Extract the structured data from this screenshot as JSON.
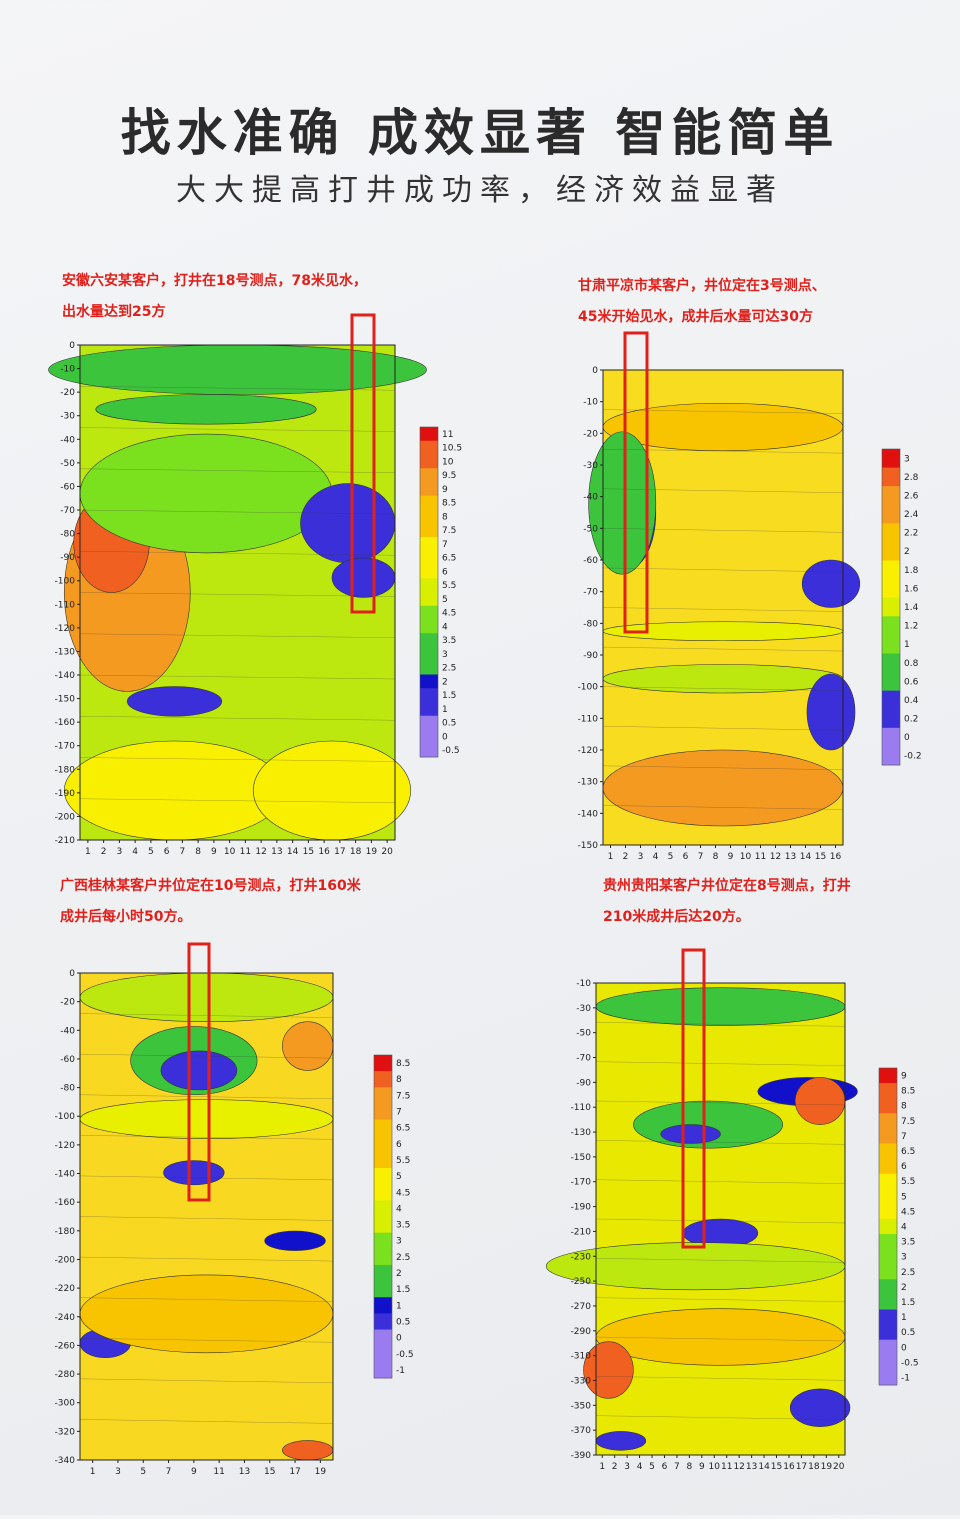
{
  "header": {
    "title": "找水准确  成效显著  智能简单",
    "subtitle": "大大提高打井成功率，经济效益显著"
  },
  "panels": [
    {
      "caption": [
        "安徽六安某客户，打井在18号测点，78米见水，",
        "出水量达到25方"
      ],
      "yticks": [
        0,
        -10,
        -20,
        -30,
        -40,
        -50,
        -60,
        -70,
        -80,
        -90,
        -100,
        -110,
        -120,
        -130,
        -140,
        -150,
        -160,
        -170,
        -180,
        -190,
        -200,
        -210
      ],
      "xticks": [
        1,
        2,
        3,
        4,
        5,
        6,
        7,
        8,
        9,
        10,
        11,
        12,
        13,
        14,
        15,
        16,
        17,
        18,
        19,
        20
      ],
      "colorbar": [
        11,
        10.5,
        10,
        9.5,
        9,
        8.5,
        8,
        7.5,
        7,
        6.5,
        6,
        5.5,
        5,
        4.5,
        4,
        3.5,
        3,
        2.5,
        2,
        1.5,
        1,
        0.5,
        0,
        -0.5
      ]
    },
    {
      "caption": [
        "甘肃平凉市某客户，井位定在3号测点、",
        "45米开始见水，成井后水量可达30方"
      ],
      "yticks": [
        0,
        -10,
        -20,
        -30,
        -40,
        -50,
        -60,
        -70,
        -80,
        -90,
        -100,
        -110,
        -120,
        -130,
        -140,
        -150
      ],
      "xticks": [
        1,
        2,
        3,
        4,
        5,
        6,
        7,
        8,
        9,
        10,
        11,
        12,
        13,
        14,
        15,
        16
      ],
      "colorbar": [
        3,
        2.8,
        2.6,
        2.4,
        2.2,
        2,
        1.8,
        1.6,
        1.4,
        1.2,
        1,
        0.8,
        0.6,
        0.4,
        0.2,
        0,
        -0.2
      ]
    },
    {
      "caption": [
        "广西桂林某客户井位定在10号测点，打井160米",
        "成井后每小时50方。"
      ],
      "yticks": [
        0,
        -20,
        -40,
        -60,
        -80,
        -100,
        -120,
        -140,
        -160,
        -180,
        -200,
        -220,
        -240,
        -260,
        -280,
        -300,
        -320,
        -340
      ],
      "xticks": [
        1,
        3,
        5,
        7,
        9,
        11,
        13,
        15,
        17,
        19
      ],
      "colorbar": [
        8.5,
        8,
        7.5,
        7,
        6.5,
        6,
        5.5,
        5,
        4.5,
        4,
        3.5,
        3,
        2.5,
        2,
        1.5,
        1,
        0.5,
        0,
        -0.5,
        -1
      ]
    },
    {
      "caption": [
        "贵州贵阳某客户井位定在8号测点，打井",
        "210米成井后达20方。"
      ],
      "yticks": [
        -10,
        -30,
        -50,
        -70,
        -90,
        -110,
        -130,
        -150,
        -170,
        -190,
        -210,
        -230,
        -250,
        -270,
        -290,
        -310,
        -330,
        -350,
        -370,
        -390
      ],
      "xticks": [
        1,
        2,
        3,
        4,
        5,
        6,
        7,
        8,
        9,
        10,
        11,
        12,
        13,
        14,
        15,
        16,
        17,
        18,
        19,
        20
      ],
      "colorbar": [
        9,
        8.5,
        8,
        7.5,
        7,
        6.5,
        6,
        5.5,
        5,
        4.5,
        4,
        3.5,
        3,
        2.5,
        2,
        1.5,
        1,
        0.5,
        0,
        -0.5,
        -1
      ]
    }
  ]
}
